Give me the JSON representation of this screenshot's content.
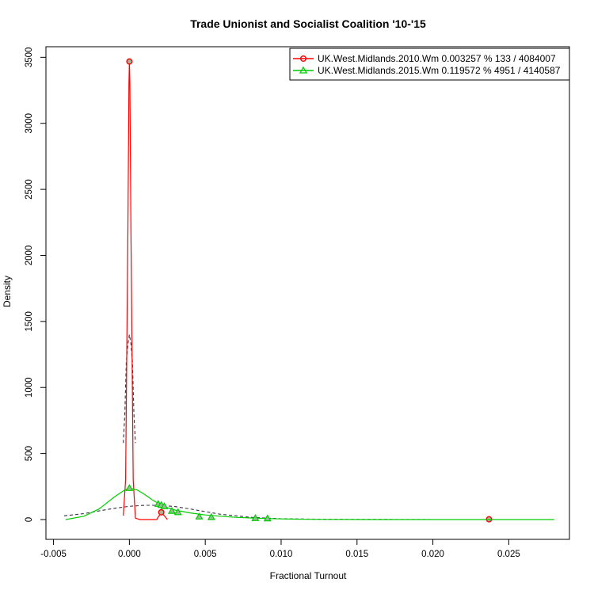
{
  "chart_data": {
    "type": "line",
    "title": "Trade Unionist and Socialist Coalition '10-'15",
    "xlabel": "Fractional Turnout",
    "ylabel": "Density",
    "xlim": [
      -0.0055,
      0.029
    ],
    "ylim": [
      -150,
      3580
    ],
    "x_ticks": [
      -0.005,
      0.0,
      0.005,
      0.01,
      0.015,
      0.02,
      0.025
    ],
    "x_tick_labels": [
      "-0.005",
      "0.000",
      "0.005",
      "0.010",
      "0.015",
      "0.020",
      "0.025"
    ],
    "y_ticks": [
      0,
      500,
      1000,
      1500,
      2000,
      2500,
      3000,
      3500
    ],
    "y_tick_labels": [
      "0",
      "500",
      "1000",
      "1500",
      "2000",
      "2500",
      "3000",
      "3500"
    ],
    "legend_position": "top-right",
    "colors": {
      "s2010": "#ff0000",
      "s2015": "#00cc00",
      "dashed": "#333344",
      "point_fill": "#99bb99"
    },
    "series": [
      {
        "name": "UK.West.Midlands.2010.Wm 0.003257 % 133 / 4084007",
        "color": "#ff0000",
        "marker": "circle",
        "density": {
          "x": [
            -0.0004,
            -0.00025,
            -0.0001,
            -3e-05,
            0.0,
            3e-05,
            0.0001,
            0.00025,
            0.0004,
            0.0007,
            0.0012,
            0.0018,
            0.0021,
            0.0024,
            0.0025
          ],
          "y": [
            30,
            300,
            2200,
            3300,
            3468,
            3300,
            2200,
            300,
            10,
            0,
            0,
            0,
            55,
            15,
            0
          ]
        },
        "points_x": [
          0.0,
          0.0021,
          0.0237
        ],
        "points_y": [
          3468,
          55,
          2
        ]
      },
      {
        "name": "UK.West.Midlands.2015.Wm 0.119572 % 4951 / 4140587",
        "color": "#00cc00",
        "marker": "triangle",
        "density": {
          "x": [
            -0.0042,
            -0.003,
            -0.002,
            -0.001,
            -0.0003,
            0.0,
            0.0005,
            0.001,
            0.0015,
            0.002,
            0.0025,
            0.003,
            0.004,
            0.005,
            0.006,
            0.007,
            0.008,
            0.009,
            0.01,
            0.011,
            0.013,
            0.016,
            0.02,
            0.025,
            0.028
          ],
          "y": [
            0,
            25,
            80,
            170,
            225,
            238,
            225,
            190,
            150,
            115,
            90,
            72,
            50,
            35,
            25,
            17,
            12,
            8,
            5,
            3,
            1,
            0,
            0,
            0,
            0
          ]
        },
        "points_x": [
          0.0,
          0.0019,
          0.0021,
          0.0023,
          0.0028,
          0.0032,
          0.0046,
          0.0054,
          0.0083,
          0.0091
        ],
        "points_y": [
          238,
          118,
          110,
          100,
          65,
          55,
          22,
          18,
          10,
          8
        ]
      }
    ],
    "reference_curves": [
      {
        "x": [
          -0.0004,
          -0.0003,
          -0.0002,
          -0.0001,
          0.0,
          0.0001,
          0.0002,
          0.0003,
          0.0004
        ],
        "y": [
          580,
          800,
          1200,
          1330,
          1400,
          1330,
          1200,
          800,
          580
        ]
      },
      {
        "x": [
          -0.0043,
          -0.003,
          -0.002,
          -0.001,
          0.0,
          0.001,
          0.002,
          0.003,
          0.004,
          0.005,
          0.006,
          0.008,
          0.01,
          0.013,
          0.016,
          0.02,
          0.025,
          0.028
        ],
        "y": [
          28,
          45,
          65,
          85,
          100,
          108,
          108,
          98,
          80,
          60,
          40,
          17,
          6,
          2,
          1,
          0,
          0,
          0
        ]
      }
    ]
  }
}
